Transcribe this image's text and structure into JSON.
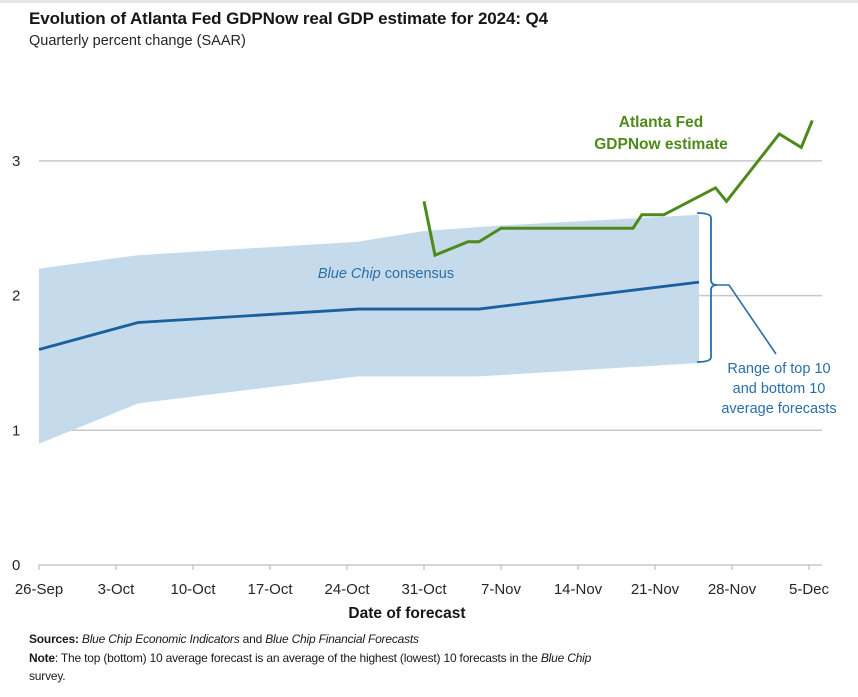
{
  "chart_data": {
    "type": "line",
    "title": "Evolution of Atlanta Fed GDPNow real GDP estimate for 2024: Q4",
    "subtitle": "Quarterly percent change (SAAR)",
    "xlabel": "Date of forecast",
    "ylabel": "",
    "ylim": [
      0,
      3.4
    ],
    "yticks": [
      0,
      1,
      2,
      3
    ],
    "x_start": "2024-09-26",
    "x_end": "2024-12-05",
    "xticks": [
      {
        "day": 0,
        "label": "26-Sep"
      },
      {
        "day": 7,
        "label": "3-Oct"
      },
      {
        "day": 14,
        "label": "10-Oct"
      },
      {
        "day": 21,
        "label": "17-Oct"
      },
      {
        "day": 28,
        "label": "24-Oct"
      },
      {
        "day": 35,
        "label": "31-Oct"
      },
      {
        "day": 42,
        "label": "7-Nov"
      },
      {
        "day": 49,
        "label": "14-Nov"
      },
      {
        "day": 56,
        "label": "21-Nov"
      },
      {
        "day": 63,
        "label": "28-Nov"
      },
      {
        "day": 70,
        "label": "5-Dec"
      }
    ],
    "grid": true,
    "series": [
      {
        "name": "Atlanta Fed GDPNow estimate",
        "color": "#4e8a1a",
        "points": [
          {
            "day": 35,
            "date": "31-Oct",
            "value": 2.7
          },
          {
            "day": 36,
            "date": "1-Nov",
            "value": 2.3
          },
          {
            "day": 39,
            "date": "4-Nov",
            "value": 2.4
          },
          {
            "day": 40,
            "date": "5-Nov",
            "value": 2.4
          },
          {
            "day": 42,
            "date": "7-Nov",
            "value": 2.5
          },
          {
            "day": 50,
            "date": "15-Nov",
            "value": 2.5
          },
          {
            "day": 54,
            "date": "19-Nov",
            "value": 2.5
          },
          {
            "day": 54.8,
            "date": "20-Nov",
            "value": 2.6
          },
          {
            "day": 56.8,
            "date": "22-Nov",
            "value": 2.6
          },
          {
            "day": 61.5,
            "date": "26-Nov",
            "value": 2.8
          },
          {
            "day": 62.5,
            "date": "27-Nov",
            "value": 2.7
          },
          {
            "day": 67.3,
            "date": "2-Dec",
            "value": 3.2
          },
          {
            "day": 69.3,
            "date": "4-Dec",
            "value": 3.1
          },
          {
            "day": 70.3,
            "date": "5-Dec",
            "value": 3.3
          }
        ]
      },
      {
        "name": "Blue Chip consensus",
        "color": "#1a5f9e",
        "points": [
          {
            "day": 0,
            "value": 1.6
          },
          {
            "day": 9,
            "value": 1.8
          },
          {
            "day": 29,
            "value": 1.9
          },
          {
            "day": 40,
            "value": 1.9
          },
          {
            "day": 60,
            "value": 2.1
          }
        ]
      },
      {
        "name": "Range of top 10 and bottom 10 average forecasts",
        "type": "area",
        "color": "#c5daea",
        "upper": [
          {
            "day": 0,
            "value": 2.2
          },
          {
            "day": 9,
            "value": 2.3
          },
          {
            "day": 29,
            "value": 2.4
          },
          {
            "day": 35,
            "value": 2.48
          },
          {
            "day": 42,
            "value": 2.52
          },
          {
            "day": 60,
            "value": 2.6
          }
        ],
        "lower": [
          {
            "day": 0,
            "value": 0.9
          },
          {
            "day": 9,
            "value": 1.2
          },
          {
            "day": 29,
            "value": 1.4
          },
          {
            "day": 40,
            "value": 1.4
          },
          {
            "day": 60,
            "value": 1.5
          }
        ]
      }
    ],
    "annotations": {
      "gdpnow_label_line1": "Atlanta Fed",
      "gdpnow_label_line2": "GDPNow estimate",
      "bluechip_label_italic": "Blue Chip",
      "bluechip_label_rest": " consensus",
      "range_label_line1": "Range of top 10",
      "range_label_line2": "and bottom 10",
      "range_label_line3": "average forecasts"
    }
  },
  "footer": {
    "sources_label": "Sources:",
    "sources_italic1": "Blue Chip Economic Indicators",
    "sources_mid": " and ",
    "sources_italic2": "Blue Chip Financial Forecasts",
    "note_label": "Note",
    "note_text": ": The top (bottom) 10 average forecast is an average of the highest (lowest) 10 forecasts in the ",
    "note_italic": "Blue Chip",
    "note_end": "survey."
  }
}
